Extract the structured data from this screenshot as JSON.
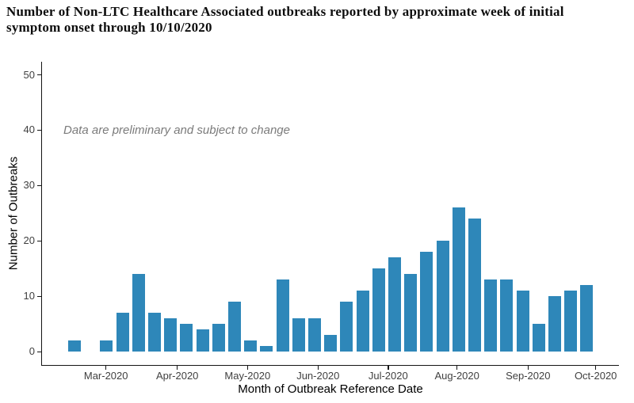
{
  "page": {
    "title_line1": "Number of Non-LTC Healthcare Associated outbreaks reported by approximate week of initial",
    "title_line2": "symptom onset through 10/10/2020"
  },
  "chart_data": {
    "type": "bar",
    "title": "Number of Non-LTC Healthcare Associated outbreaks reported by approximate week of initial symptom onset through 10/10/2020",
    "xlabel": "Month of Outbreak Reference Date",
    "ylabel": "Number of Outbreaks",
    "annotation": "Data are preliminary and subject to change",
    "x_unit": "approximate week of initial symptom onset (one bar per week, Feb 2020 through Oct 2020)",
    "values": [
      2,
      0,
      2,
      7,
      14,
      7,
      6,
      5,
      4,
      5,
      9,
      2,
      1,
      13,
      6,
      6,
      3,
      9,
      11,
      15,
      17,
      14,
      18,
      20,
      26,
      24,
      13,
      13,
      11,
      5,
      10,
      11,
      12
    ],
    "xticklabels": [
      "Mar-2020",
      "Apr-2020",
      "May-2020",
      "Jun-2020",
      "Jul-2020",
      "Aug-2020",
      "Sep-2020",
      "Oct-2020"
    ],
    "yticks": [
      0,
      10,
      20,
      30,
      40,
      50
    ],
    "ylim": [
      0,
      52
    ],
    "grid": false,
    "legend": null,
    "colors": {
      "bar": "#2E87B9",
      "axis": "#141414",
      "tick_label": "#404040",
      "axis_title": "#000000",
      "annotation": "#7B7B7B",
      "title": "#0D0D0D",
      "background": "#FFFFFF"
    }
  }
}
